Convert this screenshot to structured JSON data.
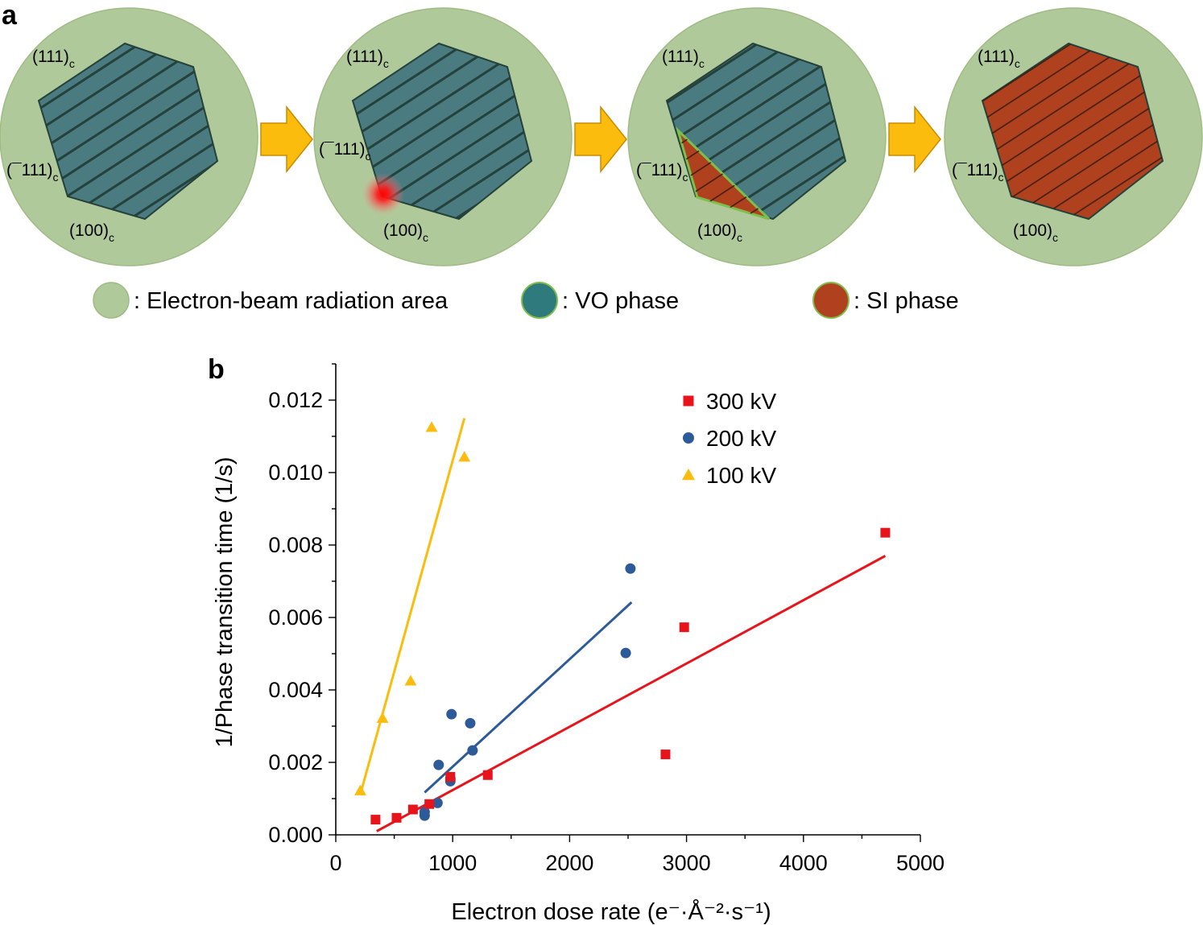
{
  "panel_a": {
    "label": "a",
    "stages": [
      {
        "facets": [
          "(111)",
          "(¯111)",
          "(100)"
        ],
        "sub": "c",
        "phase": "vo",
        "beam_spot": false
      },
      {
        "facets": [
          "(111)",
          "(¯111)",
          "(100)"
        ],
        "sub": "c",
        "phase": "vo",
        "beam_spot": true
      },
      {
        "facets": [
          "(111)",
          "(¯111)",
          "(100)"
        ],
        "sub": "c",
        "phase": "partial",
        "beam_spot": false
      },
      {
        "facets": [
          "(111)",
          "(¯111)",
          "(100)"
        ],
        "sub": "c",
        "phase": "si",
        "beam_spot": false
      }
    ],
    "legend": [
      {
        "key": "beam",
        "text": ": Electron-beam radiation area",
        "color": "#b0c99a"
      },
      {
        "key": "vo",
        "text": ": VO phase",
        "color": "#2e7a7c"
      },
      {
        "key": "si",
        "text": ": SI phase",
        "color": "#b0411e"
      }
    ],
    "colors": {
      "beam_area": "#b0c99a",
      "vo_fill": "#4a7b80",
      "si_fill": "#b0411e",
      "arrow": "#fbbc0d",
      "stripe": "#24413a"
    }
  },
  "chart_data": {
    "type": "scatter",
    "panel_label": "b",
    "xlabel": "Electron dose rate (e⁻·Å⁻²·s⁻¹)",
    "ylabel": "1/Phase transition time (1/s)",
    "xlim": [
      0,
      5000
    ],
    "ylim": [
      0,
      0.013
    ],
    "xticks": [
      0,
      1000,
      2000,
      3000,
      4000,
      5000
    ],
    "xtick_labels": [
      "0",
      "1000",
      "2000",
      "3000",
      "4000",
      "5000"
    ],
    "yticks": [
      0,
      0.002,
      0.004,
      0.006,
      0.008,
      0.01,
      0.012
    ],
    "ytick_labels": [
      "0.000",
      "0.002",
      "0.004",
      "0.006",
      "0.008",
      "0.010",
      "0.012"
    ],
    "legend_position": "top-right",
    "series": [
      {
        "name": "300 kV",
        "marker": "square",
        "color": "#e8141b",
        "points": [
          [
            340,
            0.00042
          ],
          [
            520,
            0.00047
          ],
          [
            660,
            0.0007
          ],
          [
            800,
            0.00085
          ],
          [
            980,
            0.0016
          ],
          [
            1300,
            0.00165
          ],
          [
            2820,
            0.00222
          ],
          [
            2980,
            0.00573
          ],
          [
            4700,
            0.00834
          ]
        ],
        "fit": [
          [
            350,
            0.0001
          ],
          [
            4700,
            0.0077
          ]
        ]
      },
      {
        "name": "200 kV",
        "marker": "circle",
        "color": "#2d5a98",
        "points": [
          [
            760,
            0.00053
          ],
          [
            760,
            0.00063
          ],
          [
            870,
            0.00088
          ],
          [
            880,
            0.00193
          ],
          [
            980,
            0.00148
          ],
          [
            980,
            0.00155
          ],
          [
            990,
            0.00333
          ],
          [
            1150,
            0.00308
          ],
          [
            1170,
            0.00233
          ],
          [
            2480,
            0.00502
          ],
          [
            2520,
            0.00735
          ]
        ],
        "fit": [
          [
            760,
            0.00117
          ],
          [
            2530,
            0.00642
          ]
        ]
      },
      {
        "name": "100 kV",
        "marker": "triangle",
        "color": "#fbbc0d",
        "points": [
          [
            210,
            0.00122
          ],
          [
            400,
            0.00322
          ],
          [
            640,
            0.00425
          ],
          [
            820,
            0.01125
          ],
          [
            1100,
            0.01043
          ]
        ],
        "fit": [
          [
            210,
            0.00112
          ],
          [
            1100,
            0.0115
          ]
        ]
      }
    ]
  }
}
